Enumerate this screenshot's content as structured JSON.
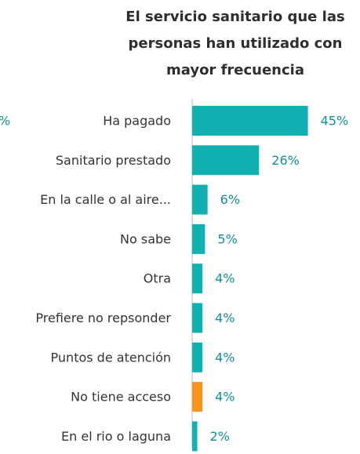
{
  "chart_data": {
    "type": "bar",
    "orientation": "horizontal",
    "title": [
      "El servicio sanitario que las",
      "personas han utilizado con",
      "mayor frecuencia"
    ],
    "annotation": "%",
    "categories": [
      "Ha pagado",
      "Sanitario prestado",
      "En la calle o al aire...",
      "No sabe",
      "Otra",
      "Prefiere no repsonder",
      "Puntos de atención",
      "No tiene acceso",
      "En el rio o laguna"
    ],
    "values": [
      45,
      26,
      6,
      5,
      4,
      4,
      4,
      4,
      2
    ],
    "value_labels": [
      "45%",
      "26%",
      "6%",
      "5%",
      "4%",
      "4%",
      "4%",
      "4%",
      "2%"
    ],
    "colors": [
      "#12b1b1",
      "#12b1b1",
      "#12b1b1",
      "#12b1b1",
      "#12b1b1",
      "#12b1b1",
      "#12b1b1",
      "#f7931e",
      "#12b1b1"
    ]
  }
}
